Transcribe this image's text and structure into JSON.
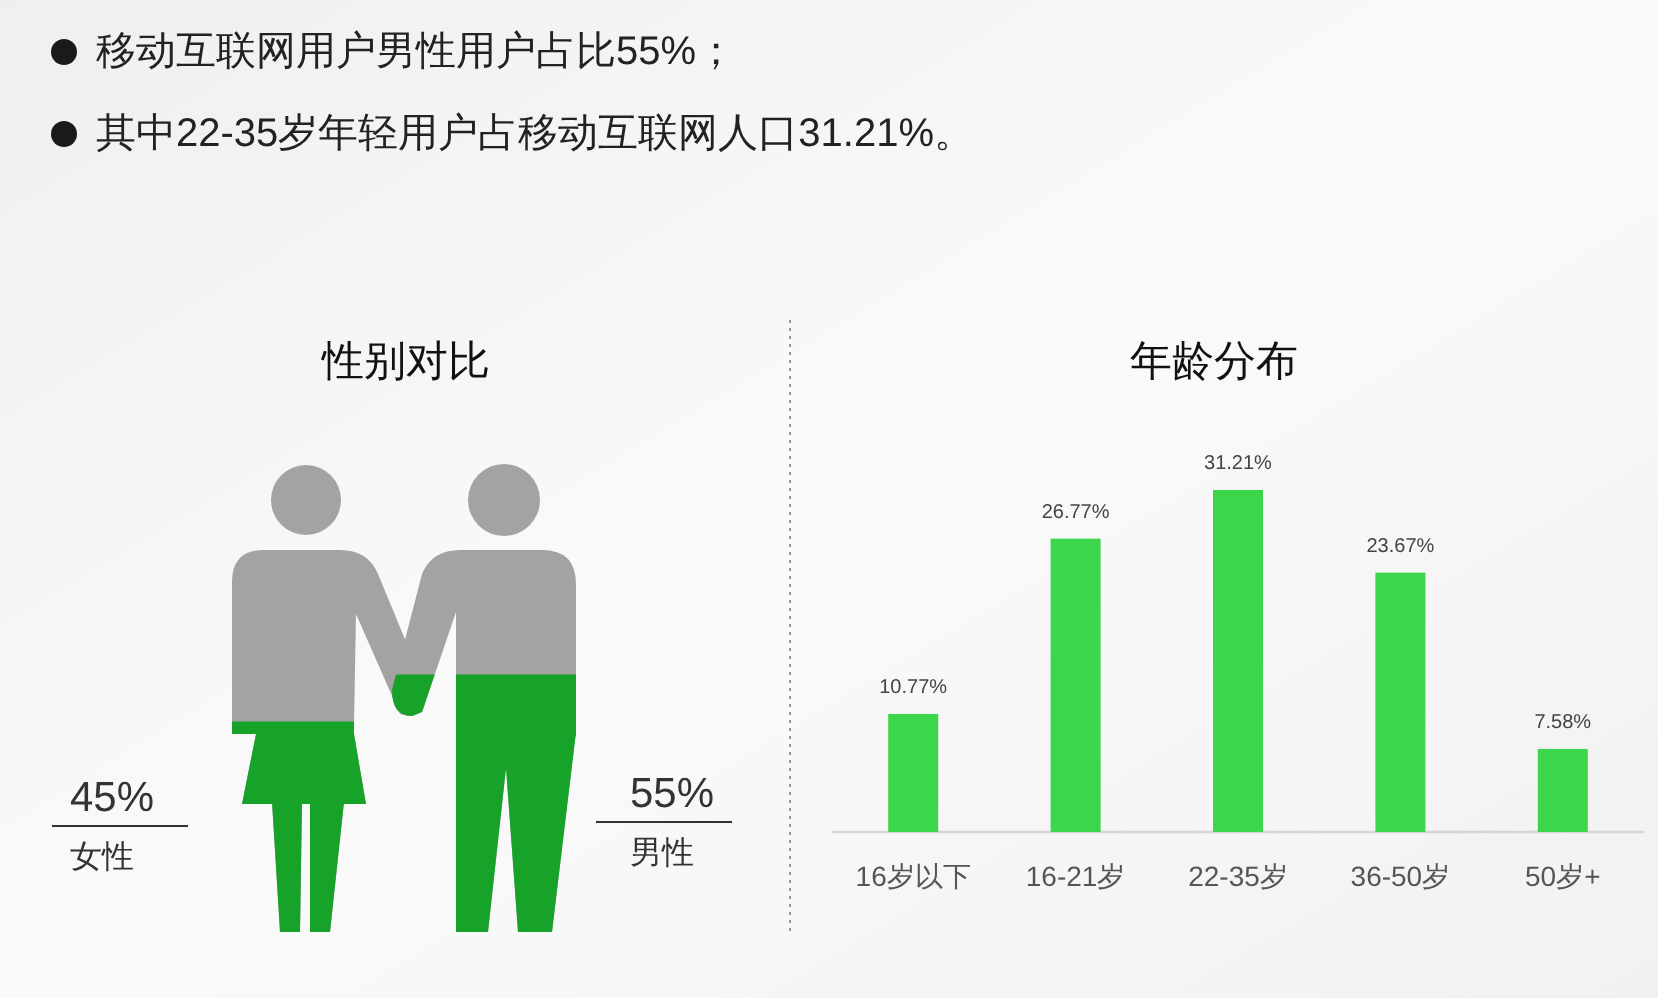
{
  "chart_data": [
    {
      "type": "other",
      "annotations": [
        "移动互联网用户男性用户占比55%；",
        "其中22-35岁年轻用户占移动互联网人口31.21%。"
      ]
    },
    {
      "type": "other",
      "title": "性别对比",
      "categories": [
        "女性",
        "男性"
      ],
      "values": [
        45,
        55
      ],
      "value_labels": [
        "45%",
        "55%"
      ]
    },
    {
      "type": "bar",
      "title": "年龄分布",
      "categories": [
        "16岁以下",
        "16-21岁",
        "22-35岁",
        "36-50岁",
        "50岁+"
      ],
      "values": [
        10.77,
        26.77,
        31.21,
        23.67,
        7.58
      ],
      "value_labels": [
        "10.77%",
        "26.77%",
        "31.21%",
        "23.67%",
        "7.58%"
      ],
      "color": "#3bd64b"
    }
  ]
}
